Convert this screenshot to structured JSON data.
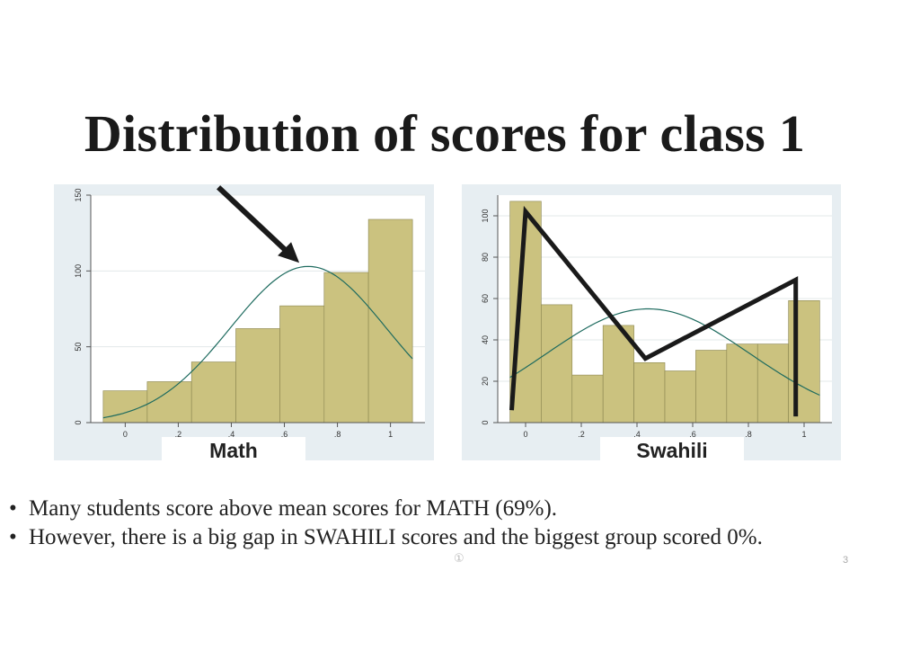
{
  "slide": {
    "title": "Distribution of scores for class 1",
    "bullets": [
      "Many students score above mean scores for MATH (69%).",
      "However, there is a big gap in SWAHILI scores and the biggest group scored 0%."
    ],
    "bullet_symbol": "•",
    "page_number": "3",
    "note_marker": "①"
  },
  "colors": {
    "panel_bg": "#e7eef2",
    "plot_bg": "#ffffff",
    "bar_fill": "#cbc27f",
    "bar_stroke": "#8a8550",
    "curve": "#1e6b5f",
    "annotation": "#1a1a1a"
  },
  "chart_data": [
    {
      "type": "bar",
      "label": "Math",
      "histogram": true,
      "bin_edges": [
        -0.083,
        0.083,
        0.25,
        0.417,
        0.583,
        0.75,
        0.917,
        1.083
      ],
      "values": [
        21,
        27,
        40,
        62,
        77,
        99,
        134
      ],
      "x_ticks": [
        "0",
        ".2",
        ".4",
        ".6",
        ".8",
        "1"
      ],
      "x_tick_values": [
        0,
        0.2,
        0.4,
        0.6,
        0.8,
        1.0
      ],
      "y_ticks": [
        "0",
        "50",
        "100",
        "150"
      ],
      "y_tick_values": [
        0,
        50,
        100,
        150
      ],
      "xlim": [
        -0.13,
        1.13
      ],
      "ylim": [
        0,
        150
      ],
      "grid": "horizontal",
      "normal_curve": {
        "mean": 0.69,
        "peak": 103
      },
      "annotation": "arrow pointing to peak of normal curve"
    },
    {
      "type": "bar",
      "label": "Swahili",
      "histogram": true,
      "bin_edges": [
        -0.056,
        0.056,
        0.167,
        0.278,
        0.389,
        0.5,
        0.611,
        0.722,
        0.833,
        0.944,
        1.056
      ],
      "values": [
        107,
        57,
        23,
        47,
        29,
        25,
        35,
        38,
        38,
        59
      ],
      "x_ticks": [
        "0",
        ".2",
        ".4",
        ".6",
        ".8",
        "1"
      ],
      "x_tick_values": [
        0,
        0.2,
        0.4,
        0.6,
        0.8,
        1.0
      ],
      "y_ticks": [
        "0",
        "20",
        "40",
        "60",
        "80",
        "100"
      ],
      "y_tick_values": [
        0,
        20,
        40,
        60,
        80,
        100
      ],
      "xlim": [
        -0.1,
        1.1
      ],
      "ylim": [
        0,
        110
      ],
      "grid": "horizontal",
      "normal_curve": {
        "mean": 0.44,
        "peak": 55
      },
      "annotation_polyline": [
        [
          -0.05,
          6
        ],
        [
          0.0,
          102
        ],
        [
          0.43,
          31
        ],
        [
          0.97,
          69
        ],
        [
          0.97,
          3
        ]
      ]
    }
  ]
}
